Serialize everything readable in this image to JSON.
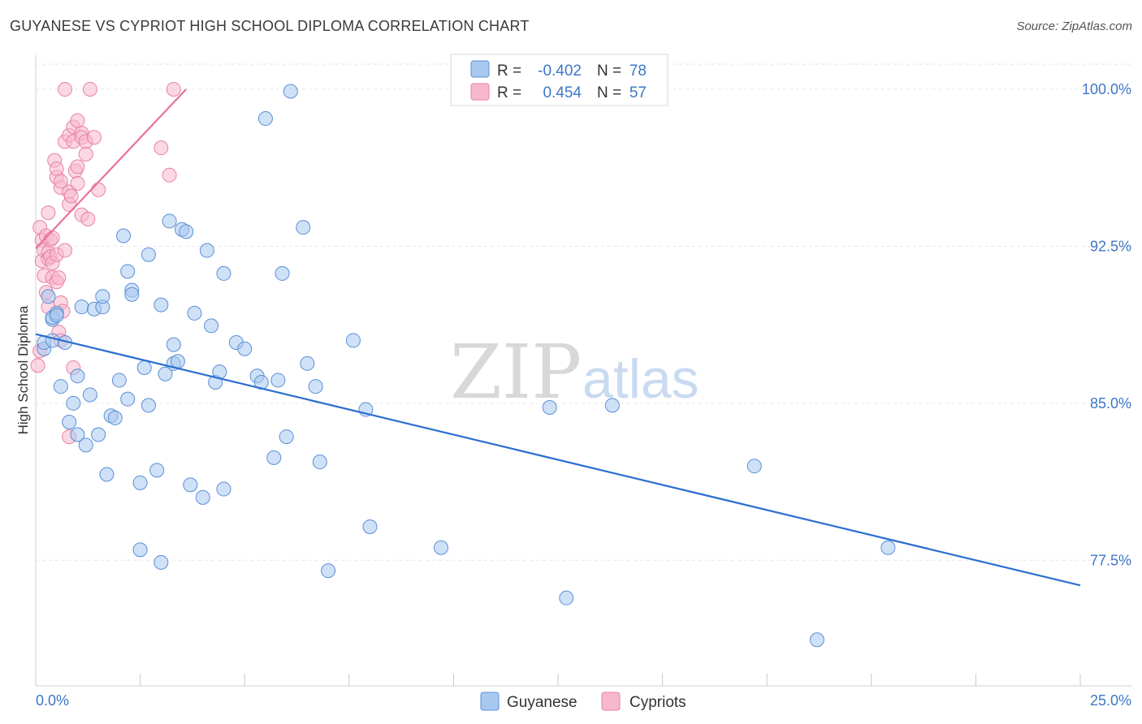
{
  "title": "GUYANESE VS CYPRIOT HIGH SCHOOL DIPLOMA CORRELATION CHART",
  "source": "Source: ZipAtlas.com",
  "watermark": {
    "zip": "ZIP",
    "atlas": "atlas"
  },
  "colors": {
    "guyanese_fill": "#a8c8f0",
    "guyanese_stroke": "#5b8fd6",
    "guyanese_line": "#2b6fd0",
    "cypriot_fill": "#f7b8cc",
    "cypriot_stroke": "#e882a3",
    "cypriot_line": "#e8729a",
    "tick_label": "#3d77c9"
  },
  "legend": {
    "rows": [
      {
        "r_label": "R =",
        "r_value": "-0.402",
        "n_label": "N =",
        "n_value": "78"
      },
      {
        "r_label": "R =",
        "r_value": "0.454",
        "n_label": "N =",
        "n_value": "57"
      }
    ]
  },
  "chart_data": {
    "type": "scatter",
    "title": "GUYANESE VS CYPRIOT HIGH SCHOOL DIPLOMA CORRELATION CHART",
    "xlabel": "",
    "ylabel": "High School Diploma",
    "xlim": [
      0,
      25
    ],
    "ylim": [
      71.5,
      101.2
    ],
    "x_tick_labels": [
      "0.0%",
      "25.0%"
    ],
    "y_ticks": [
      77.5,
      85.0,
      92.5,
      100.0
    ],
    "y_tick_labels": [
      "77.5%",
      "85.0%",
      "92.5%",
      "100.0%"
    ],
    "grid": true,
    "series": [
      {
        "name": "Guyanese",
        "r": -0.402,
        "n": 78,
        "trend": {
          "x": [
            0.0,
            25.0
          ],
          "y": [
            88.3,
            76.3
          ]
        },
        "points": [
          [
            0.2,
            87.6
          ],
          [
            0.2,
            87.9
          ],
          [
            0.3,
            90.1
          ],
          [
            0.4,
            88.0
          ],
          [
            0.4,
            89.0
          ],
          [
            0.4,
            89.1
          ],
          [
            0.5,
            89.3
          ],
          [
            0.5,
            89.2
          ],
          [
            0.6,
            85.8
          ],
          [
            0.7,
            87.9
          ],
          [
            0.8,
            84.1
          ],
          [
            0.9,
            85.0
          ],
          [
            1.0,
            86.3
          ],
          [
            1.0,
            83.5
          ],
          [
            1.1,
            89.6
          ],
          [
            1.2,
            83.0
          ],
          [
            1.3,
            85.4
          ],
          [
            1.4,
            89.5
          ],
          [
            1.5,
            83.5
          ],
          [
            1.6,
            89.6
          ],
          [
            1.6,
            90.1
          ],
          [
            1.7,
            81.6
          ],
          [
            1.8,
            84.4
          ],
          [
            1.9,
            84.3
          ],
          [
            2.0,
            86.1
          ],
          [
            2.1,
            93.0
          ],
          [
            2.2,
            85.2
          ],
          [
            2.2,
            91.3
          ],
          [
            2.3,
            90.4
          ],
          [
            2.3,
            90.2
          ],
          [
            2.5,
            81.2
          ],
          [
            2.5,
            78.0
          ],
          [
            2.6,
            86.7
          ],
          [
            2.7,
            92.1
          ],
          [
            2.7,
            84.9
          ],
          [
            2.9,
            81.8
          ],
          [
            3.0,
            89.7
          ],
          [
            3.0,
            77.4
          ],
          [
            3.1,
            86.4
          ],
          [
            3.2,
            93.7
          ],
          [
            3.3,
            86.9
          ],
          [
            3.3,
            87.8
          ],
          [
            3.4,
            87.0
          ],
          [
            3.5,
            93.3
          ],
          [
            3.6,
            93.2
          ],
          [
            3.7,
            81.1
          ],
          [
            3.8,
            89.3
          ],
          [
            4.0,
            80.5
          ],
          [
            4.1,
            92.3
          ],
          [
            4.2,
            88.7
          ],
          [
            4.3,
            86.0
          ],
          [
            4.4,
            86.5
          ],
          [
            4.5,
            91.2
          ],
          [
            4.5,
            80.9
          ],
          [
            4.8,
            87.9
          ],
          [
            5.0,
            87.6
          ],
          [
            5.3,
            86.3
          ],
          [
            5.4,
            86.0
          ],
          [
            5.5,
            98.6
          ],
          [
            5.7,
            82.4
          ],
          [
            5.8,
            86.1
          ],
          [
            5.9,
            91.2
          ],
          [
            6.0,
            83.4
          ],
          [
            6.1,
            99.9
          ],
          [
            6.4,
            93.4
          ],
          [
            6.5,
            86.9
          ],
          [
            6.7,
            85.8
          ],
          [
            6.8,
            82.2
          ],
          [
            7.0,
            77.0
          ],
          [
            7.6,
            88.0
          ],
          [
            7.9,
            84.7
          ],
          [
            8.0,
            79.1
          ],
          [
            9.7,
            78.1
          ],
          [
            12.3,
            84.8
          ],
          [
            12.7,
            75.7
          ],
          [
            13.8,
            84.9
          ],
          [
            17.2,
            82.0
          ],
          [
            20.4,
            78.1
          ],
          [
            18.7,
            73.7
          ]
        ]
      },
      {
        "name": "Cypriots",
        "r": 0.454,
        "n": 57,
        "trend": {
          "x": [
            0.0,
            3.6
          ],
          "y": [
            92.4,
            100.0
          ]
        },
        "points": [
          [
            0.05,
            86.8
          ],
          [
            0.1,
            87.5
          ],
          [
            0.1,
            93.4
          ],
          [
            0.15,
            92.8
          ],
          [
            0.15,
            91.8
          ],
          [
            0.2,
            92.3
          ],
          [
            0.2,
            91.1
          ],
          [
            0.25,
            90.3
          ],
          [
            0.25,
            93.0
          ],
          [
            0.3,
            94.1
          ],
          [
            0.3,
            92.2
          ],
          [
            0.3,
            89.6
          ],
          [
            0.3,
            91.9
          ],
          [
            0.35,
            92.0
          ],
          [
            0.35,
            92.8
          ],
          [
            0.4,
            92.9
          ],
          [
            0.4,
            91.0
          ],
          [
            0.4,
            91.7
          ],
          [
            0.45,
            96.6
          ],
          [
            0.5,
            95.8
          ],
          [
            0.5,
            96.2
          ],
          [
            0.5,
            90.8
          ],
          [
            0.5,
            92.1
          ],
          [
            0.55,
            88.4
          ],
          [
            0.55,
            91.0
          ],
          [
            0.6,
            88.0
          ],
          [
            0.6,
            95.3
          ],
          [
            0.6,
            95.6
          ],
          [
            0.6,
            89.8
          ],
          [
            0.65,
            89.4
          ],
          [
            0.7,
            97.5
          ],
          [
            0.7,
            92.3
          ],
          [
            0.7,
            100.0
          ],
          [
            0.8,
            97.8
          ],
          [
            0.8,
            95.1
          ],
          [
            0.8,
            94.5
          ],
          [
            0.8,
            83.4
          ],
          [
            0.85,
            94.9
          ],
          [
            0.9,
            97.5
          ],
          [
            0.9,
            86.7
          ],
          [
            0.9,
            98.2
          ],
          [
            0.95,
            96.1
          ],
          [
            1.0,
            95.5
          ],
          [
            1.0,
            96.3
          ],
          [
            1.0,
            98.5
          ],
          [
            1.1,
            97.9
          ],
          [
            1.1,
            97.7
          ],
          [
            1.1,
            94.0
          ],
          [
            1.2,
            97.5
          ],
          [
            1.2,
            96.9
          ],
          [
            1.25,
            93.8
          ],
          [
            1.3,
            100.0
          ],
          [
            1.4,
            97.7
          ],
          [
            1.5,
            95.2
          ],
          [
            3.0,
            97.2
          ],
          [
            3.2,
            95.9
          ],
          [
            3.3,
            100.0
          ]
        ]
      }
    ]
  }
}
